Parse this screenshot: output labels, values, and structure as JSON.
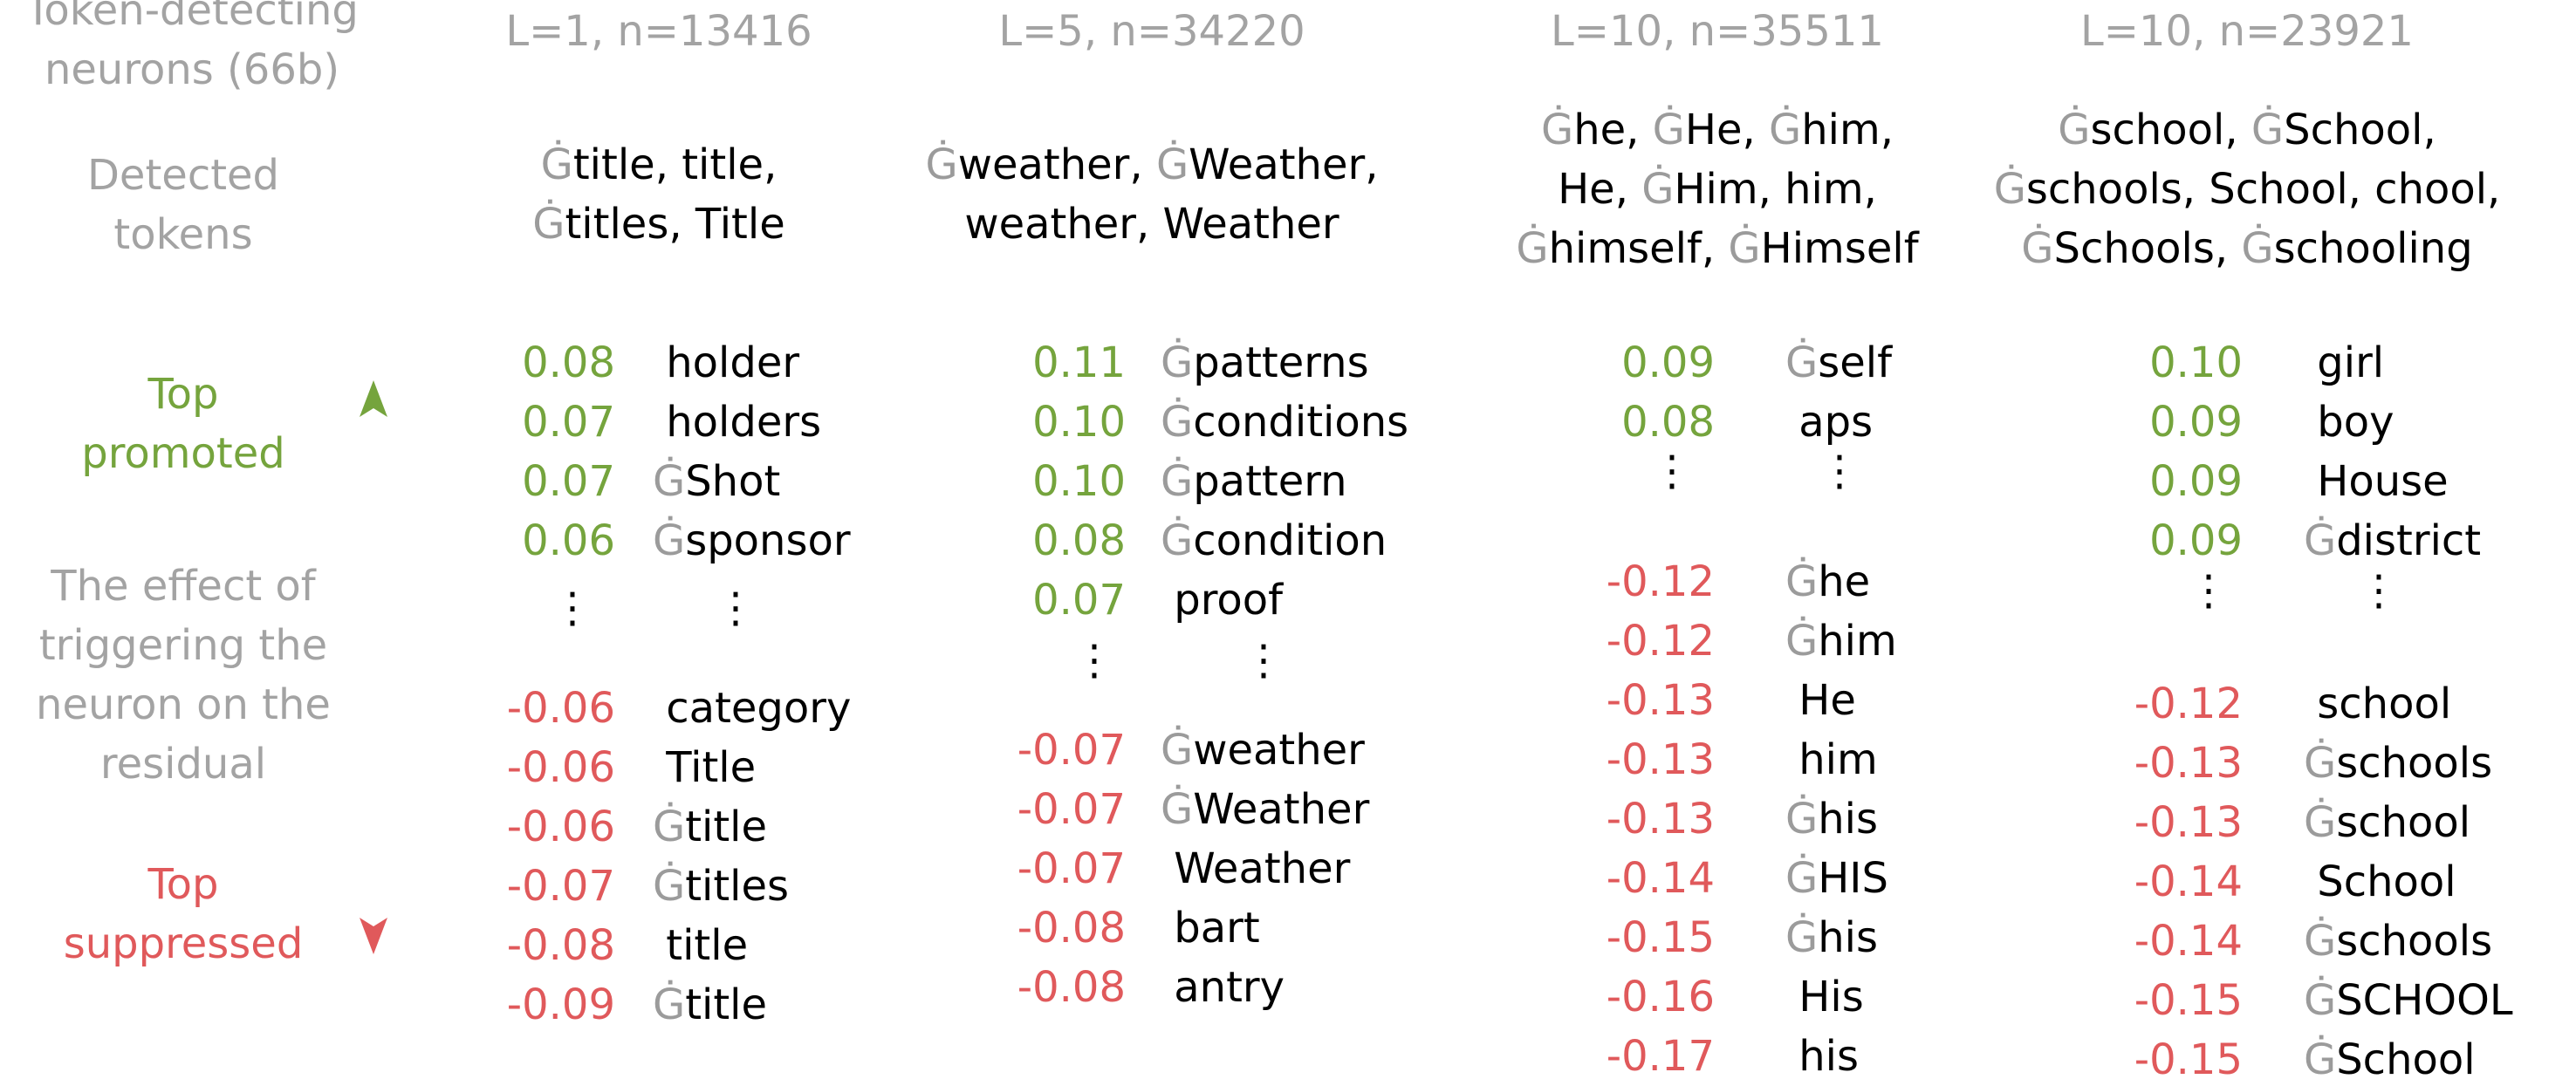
{
  "side": {
    "title": [
      "Token-detecting",
      "neurons (66b)"
    ],
    "detected": [
      "Detected",
      "tokens"
    ],
    "promoted": [
      "Top",
      "promoted"
    ],
    "effect": [
      "The effect of",
      "triggering the",
      "neuron on the",
      "residual"
    ],
    "suppressed": [
      "Top",
      "suppressed"
    ]
  },
  "colors": {
    "positive": "#75a43d",
    "negative": "#e0595b",
    "muted": "#a3a3a3",
    "space_marker": "#9b9b9b"
  },
  "space_marker": "Ġ",
  "ellipsis": "⋮",
  "columns": [
    {
      "header": "L=1, n=13416",
      "detected": [
        "Ġtitle, title,",
        "Ġtitles, Title"
      ],
      "promoted": [
        {
          "v": "0.08",
          "t": " holder"
        },
        {
          "v": "0.07",
          "t": " holders"
        },
        {
          "v": "0.07",
          "t": "ĠShot"
        },
        {
          "v": "0.06",
          "t": "Ġsponsor"
        }
      ],
      "suppressed": [
        {
          "v": "-0.06",
          "t": " category"
        },
        {
          "v": "-0.06",
          "t": " Title"
        },
        {
          "v": "-0.06",
          "t": "Ġtitle"
        },
        {
          "v": "-0.07",
          "t": "Ġtitles"
        },
        {
          "v": "-0.08",
          "t": " title"
        },
        {
          "v": "-0.09",
          "t": "Ġtitle"
        }
      ]
    },
    {
      "header": "L=5, n=34220",
      "detected": [
        "Ġweather, ĠWeather,",
        "weather, Weather"
      ],
      "promoted": [
        {
          "v": "0.11",
          "t": "Ġpatterns"
        },
        {
          "v": "0.10",
          "t": "Ġconditions"
        },
        {
          "v": "0.10",
          "t": "Ġpattern"
        },
        {
          "v": "0.08",
          "t": "Ġcondition"
        },
        {
          "v": "0.07",
          "t": " proof"
        }
      ],
      "suppressed": [
        {
          "v": "-0.07",
          "t": "Ġweather"
        },
        {
          "v": "-0.07",
          "t": "ĠWeather"
        },
        {
          "v": "-0.07",
          "t": " Weather"
        },
        {
          "v": "-0.08",
          "t": " bart"
        },
        {
          "v": "-0.08",
          "t": " antry"
        }
      ]
    },
    {
      "header": "L=10, n=35511",
      "detected": [
        "Ġhe, ĠHe, Ġhim,",
        "He, ĠHim, him,",
        "Ġhimself, ĠHimself"
      ],
      "promoted": [
        {
          "v": "0.09",
          "t": "Ġself"
        },
        {
          "v": "0.08",
          "t": " aps"
        }
      ],
      "suppressed": [
        {
          "v": "-0.12",
          "t": "Ġhe"
        },
        {
          "v": "-0.12",
          "t": "Ġhim"
        },
        {
          "v": "-0.13",
          "t": " He"
        },
        {
          "v": "-0.13",
          "t": " him"
        },
        {
          "v": "-0.13",
          "t": "Ġhis"
        },
        {
          "v": "-0.14",
          "t": "ĠHIS"
        },
        {
          "v": "-0.15",
          "t": "Ġhis"
        },
        {
          "v": "-0.16",
          "t": " His"
        },
        {
          "v": "-0.17",
          "t": " his"
        }
      ]
    },
    {
      "header": "L=10, n=23921",
      "detected": [
        "Ġschool, ĠSchool,",
        "Ġschools, School, chool,",
        "ĠSchools, Ġschooling"
      ],
      "promoted": [
        {
          "v": "0.10",
          "t": " girl"
        },
        {
          "v": "0.09",
          "t": " boy"
        },
        {
          "v": "0.09",
          "t": " House"
        },
        {
          "v": "0.09",
          "t": "Ġdistrict"
        }
      ],
      "suppressed": [
        {
          "v": "-0.12",
          "t": " school"
        },
        {
          "v": "-0.13",
          "t": "Ġschools"
        },
        {
          "v": "-0.13",
          "t": "Ġschool"
        },
        {
          "v": "-0.14",
          "t": " School"
        },
        {
          "v": "-0.14",
          "t": "Ġschools"
        },
        {
          "v": "-0.15",
          "t": "ĠSCHOOL"
        },
        {
          "v": "-0.15",
          "t": "ĠSchool"
        }
      ]
    }
  ]
}
